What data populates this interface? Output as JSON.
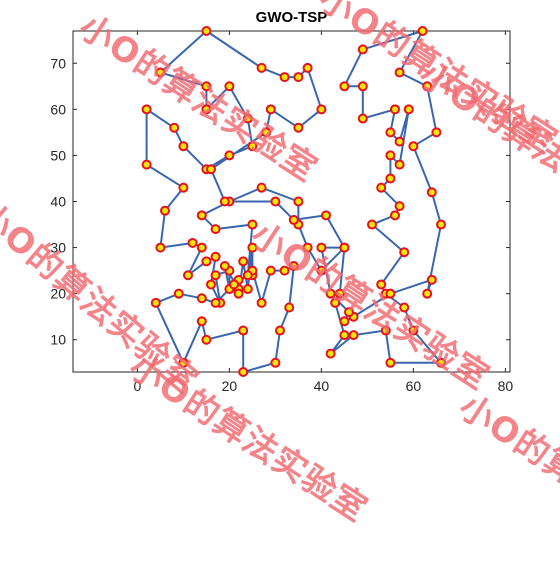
{
  "chart_data": {
    "type": "line",
    "title": "GWO-TSP",
    "xlim": [
      -14,
      81
    ],
    "ylim": [
      3,
      77
    ],
    "xticks": [
      0,
      20,
      40,
      60,
      80
    ],
    "yticks": [
      10,
      20,
      30,
      40,
      50,
      60,
      70
    ],
    "grid": false,
    "legend": "none",
    "line_color": "#3a66b0",
    "marker_edge": "#e8101a",
    "marker_fill": "#f5e60a",
    "route": [
      [
        15,
        77
      ],
      [
        5,
        68
      ],
      [
        15,
        65
      ],
      [
        15,
        60
      ],
      [
        20,
        65
      ],
      [
        24,
        58
      ],
      [
        25,
        52
      ],
      [
        20,
        50
      ],
      [
        15,
        47
      ],
      [
        10,
        52
      ],
      [
        8,
        56
      ],
      [
        2,
        60
      ],
      [
        2,
        48
      ],
      [
        10,
        43
      ],
      [
        6,
        38
      ],
      [
        5,
        30
      ],
      [
        12,
        31
      ],
      [
        14,
        30
      ],
      [
        11,
        24
      ],
      [
        15,
        27
      ],
      [
        17,
        28
      ],
      [
        16,
        22
      ],
      [
        18,
        18
      ],
      [
        17,
        24
      ],
      [
        20,
        25
      ],
      [
        20,
        21
      ],
      [
        19,
        26
      ],
      [
        22,
        21
      ],
      [
        22,
        23
      ],
      [
        22,
        20
      ],
      [
        23,
        27
      ],
      [
        24,
        21
      ],
      [
        25,
        30
      ],
      [
        25,
        24
      ],
      [
        25,
        25
      ],
      [
        27,
        18
      ],
      [
        29,
        25
      ],
      [
        32,
        25
      ],
      [
        34,
        26
      ],
      [
        33,
        17
      ],
      [
        31,
        12
      ],
      [
        30,
        5
      ],
      [
        23,
        3
      ],
      [
        23,
        12
      ],
      [
        15,
        10
      ],
      [
        14,
        14
      ],
      [
        10,
        5
      ],
      [
        4,
        18
      ],
      [
        9,
        20
      ],
      [
        14,
        19
      ],
      [
        17,
        18
      ],
      [
        21,
        22
      ],
      [
        24,
        24
      ],
      [
        25,
        35
      ],
      [
        17,
        34
      ],
      [
        14,
        37
      ],
      [
        20,
        40
      ],
      [
        27,
        43
      ],
      [
        35,
        40
      ],
      [
        35,
        35
      ],
      [
        37,
        30
      ],
      [
        40,
        25
      ],
      [
        45,
        30
      ],
      [
        44,
        20
      ],
      [
        43,
        18
      ],
      [
        45,
        11
      ],
      [
        42,
        7
      ],
      [
        47,
        11
      ],
      [
        54,
        12
      ],
      [
        55,
        5
      ],
      [
        66,
        5
      ],
      [
        60,
        12
      ],
      [
        58,
        17
      ],
      [
        54,
        20
      ],
      [
        53,
        22
      ],
      [
        58,
        29
      ],
      [
        51,
        35
      ],
      [
        56,
        37
      ],
      [
        57,
        39
      ],
      [
        53,
        43
      ],
      [
        55,
        45
      ],
      [
        55,
        50
      ],
      [
        57,
        48
      ],
      [
        59,
        60
      ],
      [
        57,
        53
      ],
      [
        55,
        55
      ],
      [
        56,
        60
      ],
      [
        49,
        58
      ],
      [
        49,
        65
      ],
      [
        45,
        65
      ],
      [
        49,
        73
      ],
      [
        62,
        77
      ],
      [
        57,
        68
      ],
      [
        63,
        65
      ],
      [
        65,
        55
      ],
      [
        60,
        52
      ],
      [
        64,
        42
      ],
      [
        66,
        35
      ],
      [
        63,
        20
      ],
      [
        64,
        23
      ],
      [
        55,
        20
      ],
      [
        47,
        15
      ],
      [
        45,
        14
      ],
      [
        46,
        16
      ],
      [
        42,
        20
      ],
      [
        40,
        30
      ],
      [
        45,
        30
      ],
      [
        41,
        37
      ],
      [
        34,
        36
      ],
      [
        30,
        40
      ],
      [
        19,
        40
      ],
      [
        16,
        47
      ],
      [
        28,
        55
      ],
      [
        29,
        60
      ],
      [
        35,
        56
      ],
      [
        40,
        60
      ],
      [
        37,
        69
      ],
      [
        35,
        67
      ],
      [
        32,
        67
      ],
      [
        27,
        69
      ],
      [
        15,
        77
      ]
    ]
  },
  "watermark": {
    "text": "小O的算法实验室",
    "color": "#f26a70"
  }
}
